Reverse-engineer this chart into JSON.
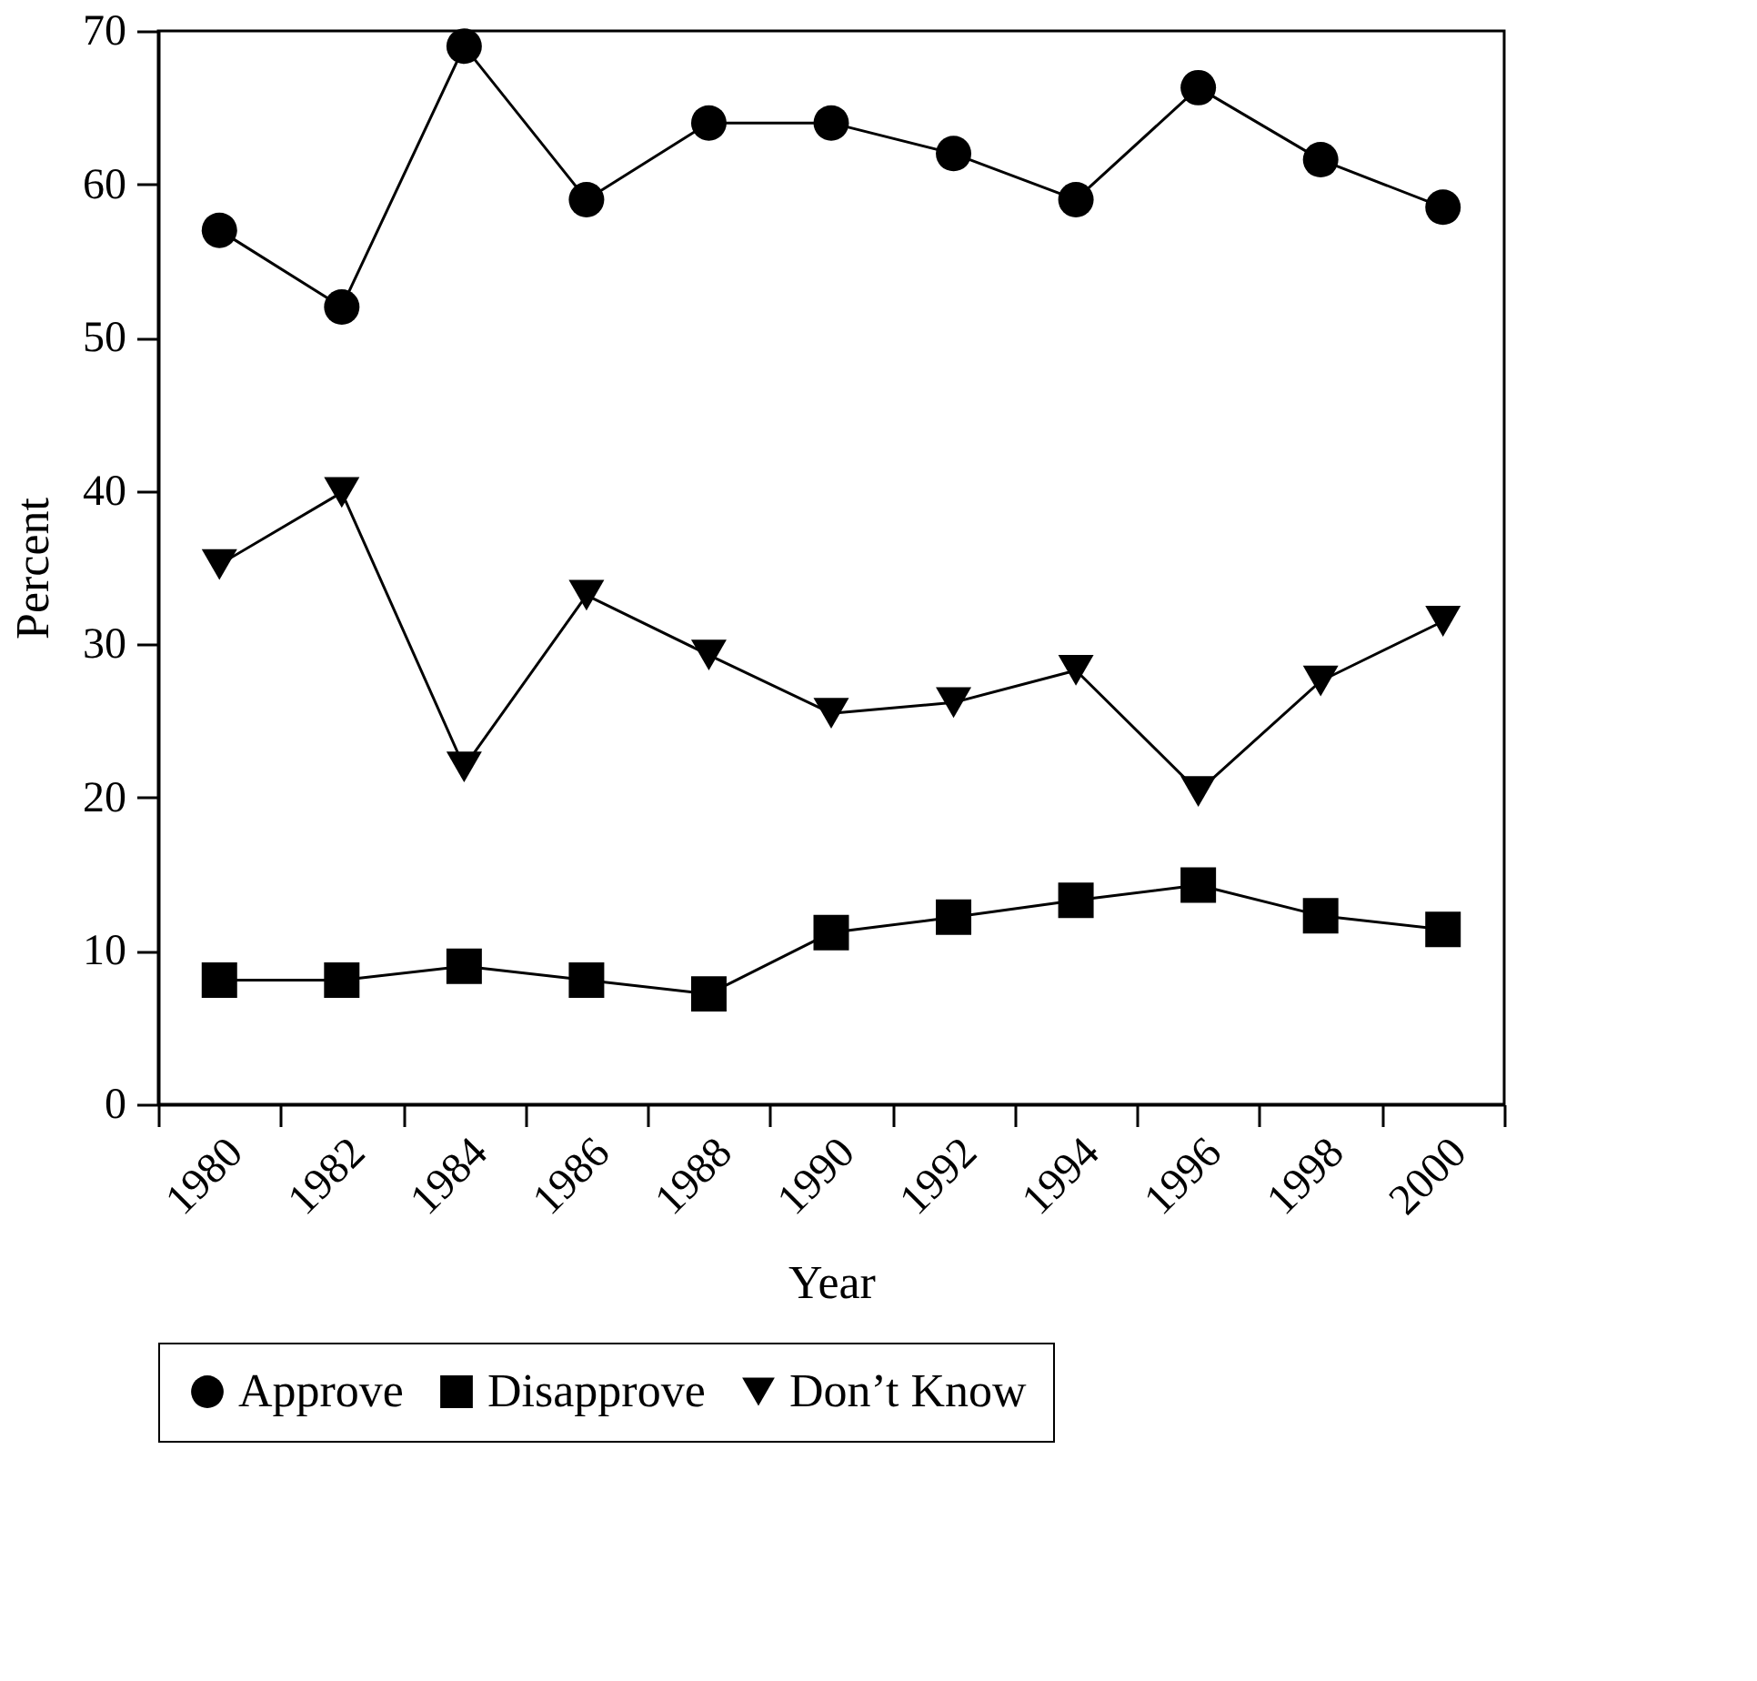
{
  "chart_data": {
    "type": "line",
    "xlabel": "Year",
    "ylabel": "Percent",
    "categories": [
      "1980",
      "1982",
      "1984",
      "1986",
      "1988",
      "1990",
      "1992",
      "1994",
      "1996",
      "1998",
      "2000"
    ],
    "series": [
      {
        "name": "Approve",
        "color": "#000000",
        "marker": "circle",
        "values": [
          57,
          52,
          69,
          59,
          64,
          64,
          62,
          59,
          66.3,
          61.6,
          58.5
        ]
      },
      {
        "name": "Disapprove",
        "color": "#000000",
        "marker": "square",
        "values": [
          8.1,
          8.1,
          9,
          8.1,
          7.2,
          11.2,
          12.2,
          13.3,
          14.3,
          12.3,
          11.4
        ]
      },
      {
        "name": "Don’t Know",
        "color": "#000000",
        "marker": "triangle",
        "values": [
          35.2,
          39.9,
          22,
          33.2,
          29.3,
          25.5,
          26.2,
          28.3,
          20.4,
          27.6,
          31.5
        ]
      }
    ],
    "ylim": [
      0,
      70
    ],
    "yticks": [
      0,
      10,
      20,
      30,
      40,
      50,
      60,
      70
    ],
    "grid": false,
    "legend": "bottom"
  }
}
